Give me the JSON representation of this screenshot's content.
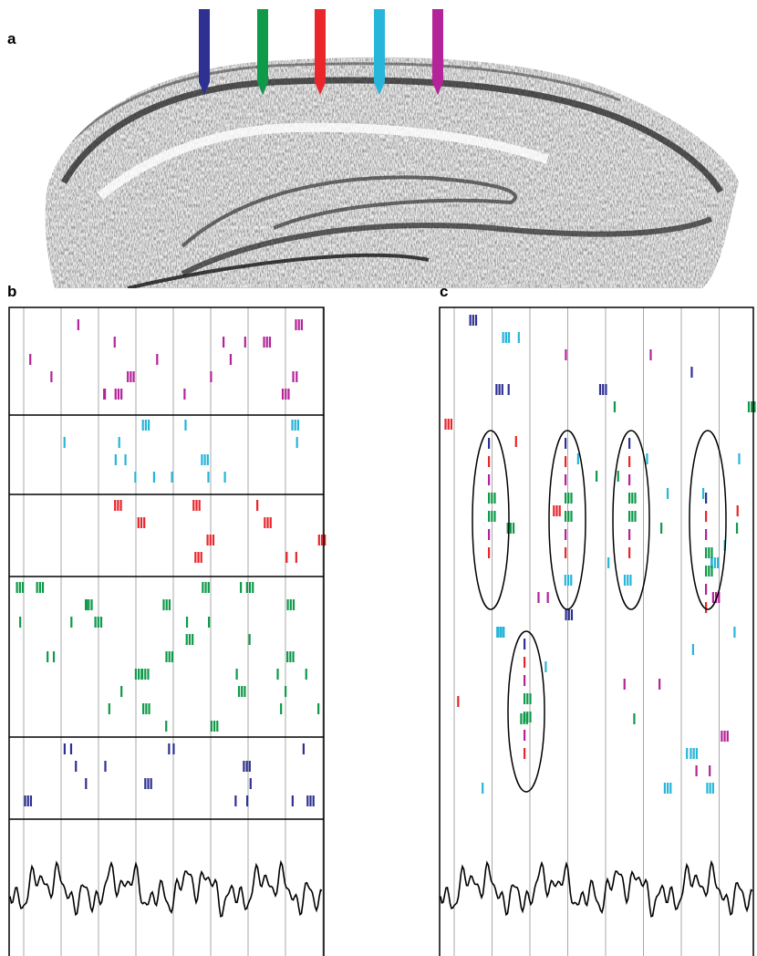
{
  "panels": [
    {
      "label": "a"
    },
    {
      "label": "b"
    },
    {
      "label": "c"
    }
  ]
}
